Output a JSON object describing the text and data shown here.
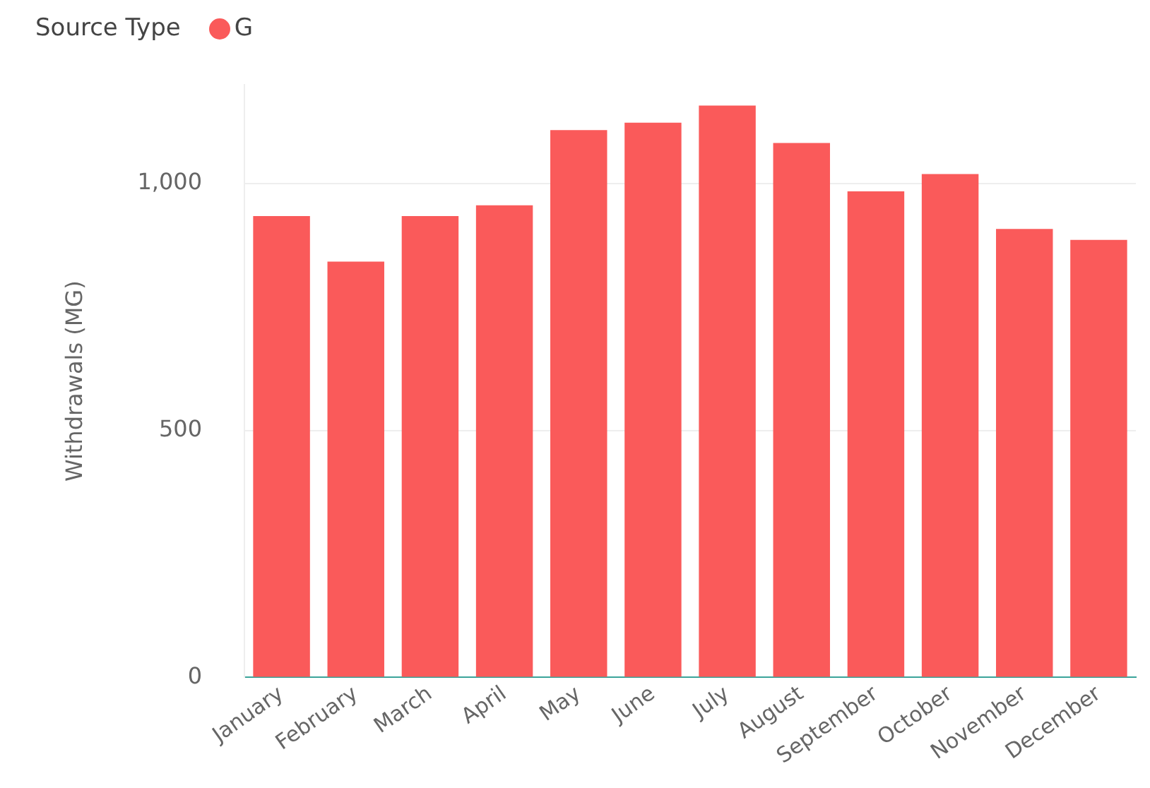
{
  "chart_data": {
    "type": "bar",
    "legend_title": "Source Type",
    "ylabel": "Withdrawals (MG)",
    "categories": [
      "January",
      "February",
      "March",
      "April",
      "May",
      "June",
      "July",
      "August",
      "September",
      "October",
      "November",
      "December"
    ],
    "series": [
      {
        "name": "G",
        "color": "#fa5a5a",
        "values": [
          934,
          842,
          934,
          956,
          1108,
          1123,
          1158,
          1082,
          984,
          1019,
          908,
          886
        ]
      }
    ],
    "ylim": [
      0,
      1200
    ],
    "yticks": [
      0,
      500,
      {
        "value": 1000,
        "label": "1,000"
      }
    ],
    "grid": "y",
    "legend": "top left"
  }
}
